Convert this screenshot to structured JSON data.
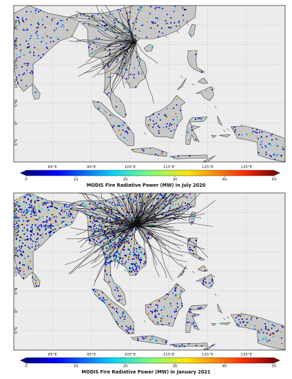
{
  "panels": [
    {
      "id": "july-2020",
      "colorbar_title": "MODIS Fire Radiative Power (MW) in July 2020",
      "trajectory_density": "moderate"
    },
    {
      "id": "january-2021",
      "colorbar_title": "MODIS Fire Radiative Power (MW) in January 2021",
      "trajectory_density": "dense"
    }
  ],
  "lat_labels": [
    "25°N",
    "20°N",
    "15°N",
    "10°N",
    "5°N",
    "0°",
    "5°S"
  ],
  "lon_labels": [
    "85°E",
    "95°E",
    "105°E",
    "115°E",
    "125°E",
    "135°E"
  ],
  "colorbar": {
    "ticks": [
      "0",
      "10",
      "20",
      "30",
      "40",
      "50"
    ],
    "min": 0,
    "max": 50
  },
  "colors": {
    "ocean": "#ececec",
    "land": "#c8c8c8",
    "coast": "#555555",
    "trajectory": "#111111"
  }
}
